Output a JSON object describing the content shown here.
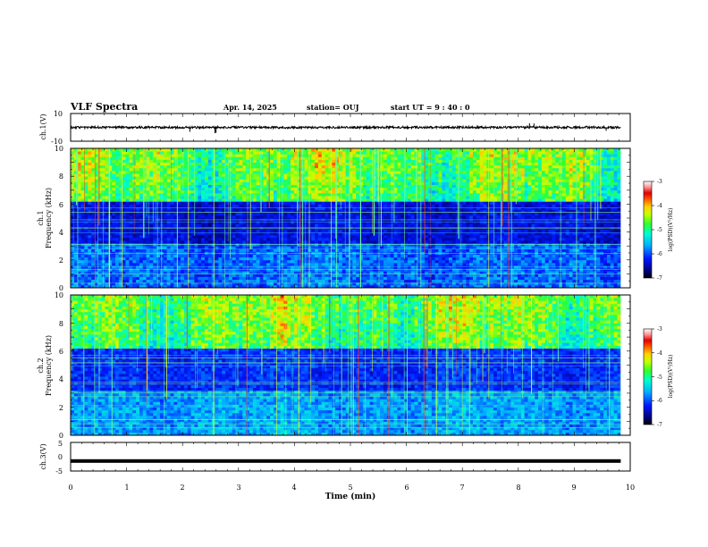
{
  "header": {
    "title": "VLF Spectra",
    "date": "Apr. 14, 2025",
    "station": "station= OUJ",
    "start": "start  UT =  9 : 40 : 0"
  },
  "chart_data": [
    {
      "id": "ch1",
      "type": "line",
      "ylabel": "ch.1(V)",
      "ylim": [
        -10,
        10
      ],
      "y_ticks": [
        "10",
        "-10"
      ],
      "xlim": [
        0,
        10
      ],
      "trace_level": 0,
      "spikes": [
        {
          "t": 2.13,
          "v": -3.2
        },
        {
          "t": 2.58,
          "v": -4.2
        },
        {
          "t": 2.6,
          "v": -3.9
        },
        {
          "t": 8.2,
          "v": 3.0
        },
        {
          "t": 8.28,
          "v": 2.8
        },
        {
          "t": 9.57,
          "v": -2.5
        }
      ]
    },
    {
      "id": "spec1",
      "type": "heatmap",
      "ylabel_line1": "ch.1",
      "ylabel_line2": "Frequency (kHz)",
      "ylim": [
        0,
        10
      ],
      "y_ticks": [
        "0",
        "2",
        "4",
        "6",
        "8",
        "10"
      ],
      "xlim": [
        0,
        10
      ],
      "data_extent_min": 9.83,
      "colorbar": {
        "range": [
          -7,
          -3
        ],
        "ticks": [
          "-3",
          "-4",
          "-5",
          "-6",
          "-7"
        ],
        "label": "log(PSD)(V²/Hz)"
      }
    },
    {
      "id": "spec2",
      "type": "heatmap",
      "ylabel_line1": "ch.2",
      "ylabel_line2": "Frequency (kHz)",
      "ylim": [
        0,
        10
      ],
      "y_ticks": [
        "0",
        "2",
        "4",
        "6",
        "8",
        "10"
      ],
      "xlim": [
        0,
        10
      ],
      "data_extent_min": 9.83,
      "colorbar": {
        "range": [
          -7,
          -3
        ],
        "ticks": [
          "-3",
          "-4",
          "-5",
          "-6",
          "-7"
        ],
        "label": "log(PSD)(V²/Hz)"
      }
    },
    {
      "id": "ch3",
      "type": "line",
      "ylabel": "ch.3(V)",
      "ylim": [
        -5,
        5
      ],
      "y_ticks": [
        "5",
        "0",
        "-5"
      ],
      "xlim": [
        0,
        10
      ],
      "trace_level": -1.5
    }
  ],
  "xaxis": {
    "label": "Time  (min)",
    "ticks": [
      "0",
      "1",
      "2",
      "3",
      "4",
      "5",
      "6",
      "7",
      "8",
      "9",
      "10"
    ]
  },
  "colors": {
    "frame": "#000000",
    "background": "#ffffff"
  }
}
